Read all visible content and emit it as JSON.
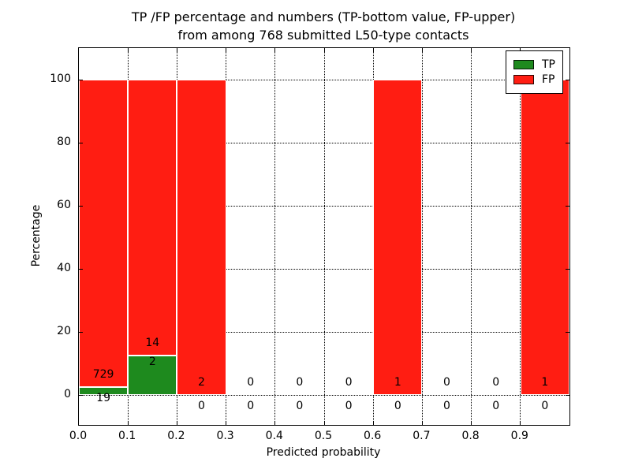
{
  "figure": {
    "title_line1": "TP /FP percentage and numbers (TP-bottom value, FP-upper)",
    "title_line2": "from among 768 submitted L50-type contacts",
    "xlabel": "Predicted probability",
    "ylabel": "Percentage"
  },
  "legend": {
    "items": [
      {
        "label": "TP",
        "color": "#1e8a1e"
      },
      {
        "label": "FP",
        "color": "#ff1d12"
      }
    ]
  },
  "chart_data": {
    "type": "bar",
    "subtype": "stacked-percentage-histogram",
    "title": "TP /FP percentage and numbers (TP-bottom value, FP-upper) from among 768 submitted L50-type contacts",
    "xlabel": "Predicted probability",
    "ylabel": "Percentage",
    "x_tick_labels": [
      "0.0",
      "0.1",
      "0.2",
      "0.3",
      "0.4",
      "0.5",
      "0.6",
      "0.7",
      "0.8",
      "0.9"
    ],
    "y_tick_values": [
      0,
      20,
      40,
      60,
      80,
      100
    ],
    "xlim": [
      0.0,
      1.0
    ],
    "ylim": [
      -9.5,
      110
    ],
    "grid": "dotted",
    "legend_position": "upper right",
    "total_contacts": 768,
    "bin_width": 0.1,
    "series": [
      {
        "name": "TP",
        "color": "#1e8a1e",
        "counts": [
          19,
          2,
          0,
          0,
          0,
          0,
          0,
          0,
          0,
          0
        ]
      },
      {
        "name": "FP",
        "color": "#ff1d12",
        "counts": [
          729,
          14,
          2,
          0,
          0,
          0,
          1,
          0,
          0,
          1
        ]
      }
    ],
    "bins": [
      {
        "x_start": 0.0,
        "x_end": 0.1,
        "tp_count": 19,
        "fp_count": 729,
        "tp_pct": 2.5,
        "fp_pct": 97.5
      },
      {
        "x_start": 0.1,
        "x_end": 0.2,
        "tp_count": 2,
        "fp_count": 14,
        "tp_pct": 12.5,
        "fp_pct": 87.5
      },
      {
        "x_start": 0.2,
        "x_end": 0.3,
        "tp_count": 0,
        "fp_count": 2,
        "tp_pct": 0,
        "fp_pct": 100
      },
      {
        "x_start": 0.3,
        "x_end": 0.4,
        "tp_count": 0,
        "fp_count": 0,
        "tp_pct": 0,
        "fp_pct": 0
      },
      {
        "x_start": 0.4,
        "x_end": 0.5,
        "tp_count": 0,
        "fp_count": 0,
        "tp_pct": 0,
        "fp_pct": 0
      },
      {
        "x_start": 0.5,
        "x_end": 0.6,
        "tp_count": 0,
        "fp_count": 0,
        "tp_pct": 0,
        "fp_pct": 0
      },
      {
        "x_start": 0.6,
        "x_end": 0.7,
        "tp_count": 0,
        "fp_count": 1,
        "tp_pct": 0,
        "fp_pct": 100
      },
      {
        "x_start": 0.7,
        "x_end": 0.8,
        "tp_count": 0,
        "fp_count": 0,
        "tp_pct": 0,
        "fp_pct": 0
      },
      {
        "x_start": 0.8,
        "x_end": 0.9,
        "tp_count": 0,
        "fp_count": 0,
        "tp_pct": 0,
        "fp_pct": 0
      },
      {
        "x_start": 0.9,
        "x_end": 1.0,
        "tp_count": 0,
        "fp_count": 1,
        "tp_pct": 0,
        "fp_pct": 100
      }
    ]
  }
}
